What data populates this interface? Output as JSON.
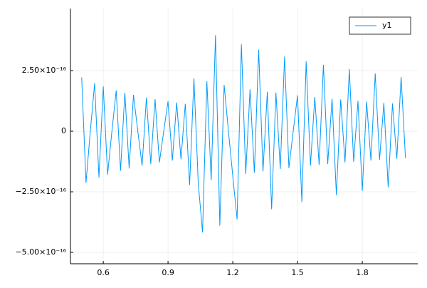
{
  "chart_data": {
    "type": "line",
    "x": [
      0.5,
      0.52,
      0.54,
      0.56,
      0.58,
      0.6,
      0.62,
      0.64,
      0.66,
      0.68,
      0.7,
      0.72,
      0.74,
      0.76,
      0.78,
      0.8,
      0.82,
      0.84,
      0.86,
      0.88,
      0.9,
      0.92,
      0.94,
      0.96,
      0.98,
      1.0,
      1.02,
      1.04,
      1.06,
      1.08,
      1.1,
      1.12,
      1.14,
      1.16,
      1.18,
      1.2,
      1.22,
      1.24,
      1.26,
      1.28,
      1.3,
      1.32,
      1.34,
      1.36,
      1.38,
      1.4,
      1.42,
      1.44,
      1.46,
      1.48,
      1.5,
      1.52,
      1.54,
      1.56,
      1.58,
      1.6,
      1.62,
      1.64,
      1.66,
      1.68,
      1.7,
      1.72,
      1.74,
      1.76,
      1.78,
      1.8,
      1.82,
      1.84,
      1.86,
      1.88,
      1.9,
      1.92,
      1.94,
      1.96,
      1.98,
      2.0
    ],
    "series": [
      {
        "name": "y1",
        "color": "#009af9",
        "values": [
          2.22e-16,
          -2.13e-16,
          0,
          1.98e-16,
          -1.91e-16,
          1.85e-16,
          -1.79e-16,
          0,
          1.68e-16,
          -1.63e-16,
          1.59e-16,
          -1.54e-16,
          1.5e-16,
          0,
          -1.42e-16,
          1.39e-16,
          -1.35e-16,
          1.32e-16,
          -1.29e-16,
          0,
          1.23e-16,
          -1.21e-16,
          1.18e-16,
          -1.16e-16,
          1.13e-16,
          -2.22e-16,
          2.18e-16,
          -2.13e-16,
          -4.18e-16,
          2.06e-16,
          -2.02e-16,
          3.96e-16,
          -3.9e-16,
          1.91e-16,
          0,
          -1.85e-16,
          -3.64e-16,
          3.58e-16,
          -1.76e-16,
          1.73e-16,
          -1.71e-16,
          3.36e-16,
          -1.66e-16,
          1.63e-16,
          -3.22e-16,
          1.59e-16,
          -1.56e-16,
          3.08e-16,
          -1.52e-16,
          0,
          1.48e-16,
          -2.92e-16,
          2.88e-16,
          -1.42e-16,
          1.41e-16,
          -1.39e-16,
          2.74e-16,
          -1.35e-16,
          1.34e-16,
          -2.64e-16,
          1.31e-16,
          -1.29e-16,
          2.56e-16,
          -1.26e-16,
          1.25e-16,
          -2.46e-16,
          1.22e-16,
          -1.21e-16,
          2.38e-16,
          -1.18e-16,
          1.17e-16,
          -2.32e-16,
          1.14e-16,
          -1.13e-16,
          2.24e-16,
          -1.11e-16
        ]
      }
    ],
    "xlim": [
      0.448,
      2.057
    ],
    "xticks": [
      0.6,
      0.9,
      1.2,
      1.5,
      1.8
    ],
    "ylim": [
      -5.47e-16,
      5.06e-16
    ],
    "yticks": [
      {
        "value": -5e-16,
        "label": "−5.00×10⁻¹⁶"
      },
      {
        "value": -2.5e-16,
        "label": "−2.50×10⁻¹⁶"
      },
      0,
      {
        "value": 2.5e-16,
        "label": "2.50×10⁻¹⁶"
      }
    ],
    "grid": true,
    "legend": "topright"
  }
}
